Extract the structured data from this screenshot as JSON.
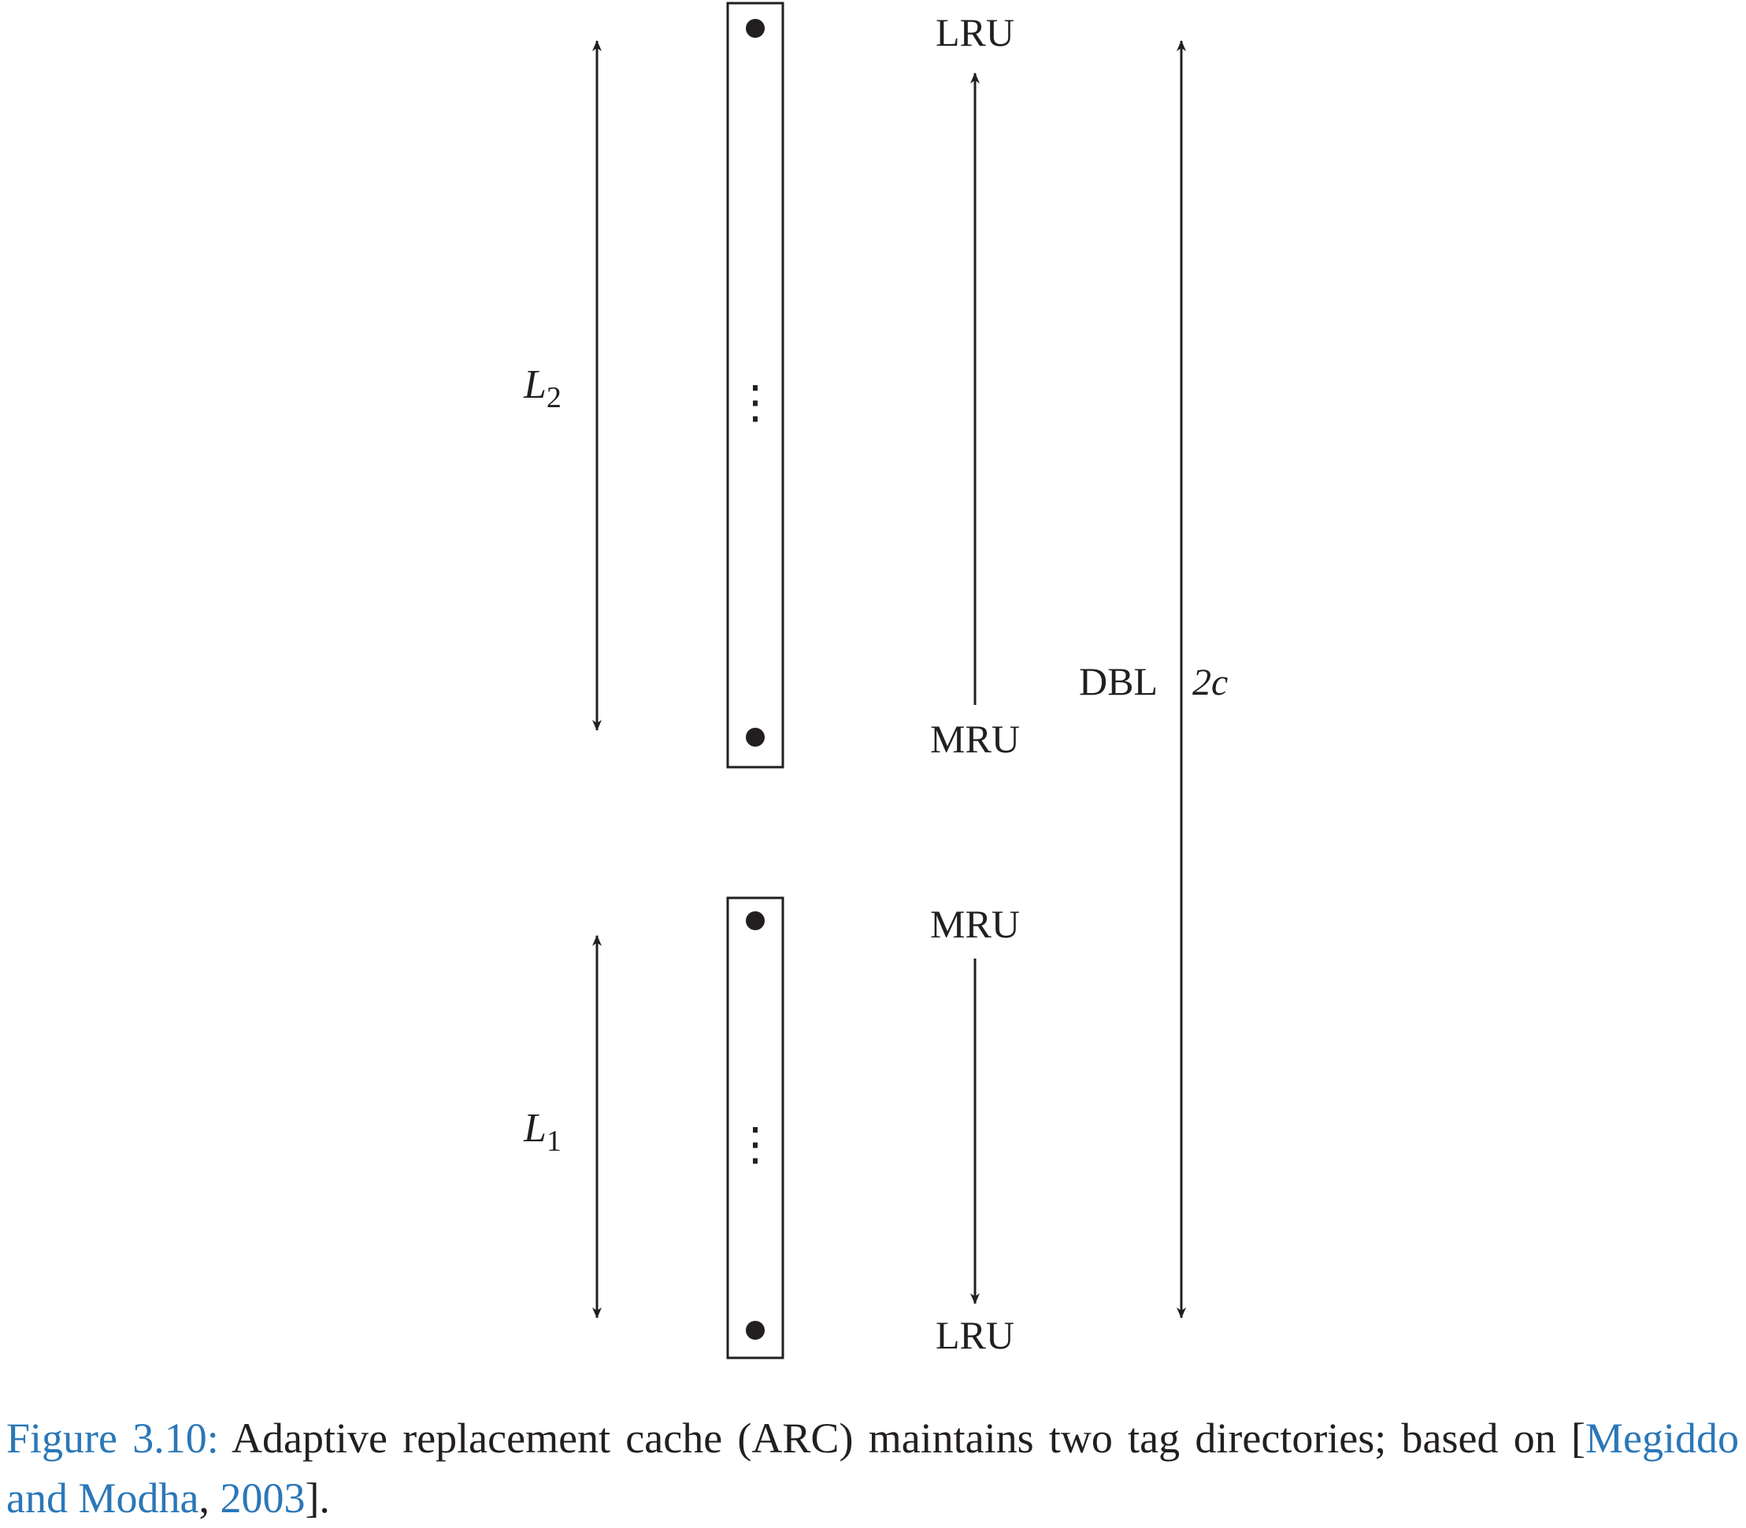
{
  "diagram": {
    "list_L2": {
      "label_main": "L",
      "label_sub": "2",
      "top_end": "LRU",
      "bottom_end": "MRU"
    },
    "list_L1": {
      "label_main": "L",
      "label_sub": "1",
      "top_end": "MRU",
      "bottom_end": "LRU"
    },
    "combined": {
      "label": "DBL",
      "size": "2c"
    },
    "ellipsis": "⋮"
  },
  "caption": {
    "label": "Figure 3.10:",
    "text_before_cite": " Adaptive replacement cache (ARC) maintains two tag directories; based on [",
    "cite": "Megiddo and Modha",
    "comma": ", ",
    "year": "2003",
    "text_after_cite": "]."
  },
  "colors": {
    "ink": "#231f20",
    "caption_accent": "#2b77b8"
  }
}
